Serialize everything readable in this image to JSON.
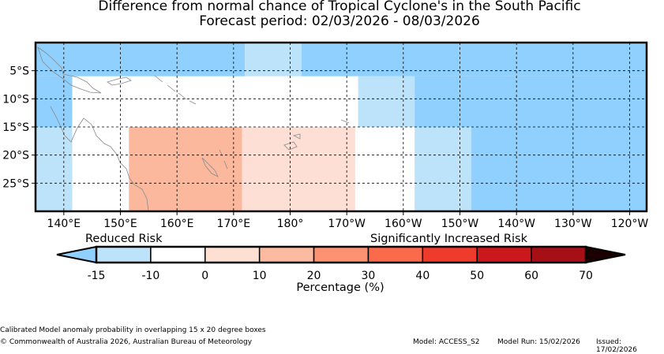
{
  "title": {
    "line1": "Difference from normal chance of Tropical Cyclone's in the South Pacific",
    "line2": "Forecast period: 02/03/2026 - 08/03/2026"
  },
  "map": {
    "lon_range": [
      135,
      243
    ],
    "lat_range": [
      -30,
      0
    ],
    "x_ticks": [
      {
        "lon": 140,
        "label": "140°E"
      },
      {
        "lon": 150,
        "label": "150°E"
      },
      {
        "lon": 160,
        "label": "160°E"
      },
      {
        "lon": 170,
        "label": "170°E"
      },
      {
        "lon": 180,
        "label": "180°"
      },
      {
        "lon": 190,
        "label": "170°W"
      },
      {
        "lon": 200,
        "label": "160°W"
      },
      {
        "lon": 210,
        "label": "150°W"
      },
      {
        "lon": 220,
        "label": "140°W"
      },
      {
        "lon": 230,
        "label": "130°W"
      },
      {
        "lon": 240,
        "label": "120°W"
      }
    ],
    "y_ticks": [
      {
        "lat": -5,
        "label": "5°S"
      },
      {
        "lat": -10,
        "label": "10°S"
      },
      {
        "lat": -15,
        "label": "15°S"
      },
      {
        "lat": -20,
        "label": "20°S"
      },
      {
        "lat": -25,
        "label": "25°S"
      }
    ],
    "grid": true,
    "cells": [
      {
        "lon": [
          135,
          172
        ],
        "lat": [
          -6,
          0
        ],
        "color": "#8fd0ff"
      },
      {
        "lon": [
          172,
          182
        ],
        "lat": [
          -6,
          0
        ],
        "color": "#bde3fb"
      },
      {
        "lon": [
          182,
          243
        ],
        "lat": [
          -6,
          0
        ],
        "color": "#8fd0ff"
      },
      {
        "lon": [
          135,
          141.5
        ],
        "lat": [
          -15,
          -6
        ],
        "color": "#8fd0ff"
      },
      {
        "lon": [
          141.5,
          192
        ],
        "lat": [
          -15,
          -6
        ],
        "color": "#ffffff"
      },
      {
        "lon": [
          192,
          202
        ],
        "lat": [
          -15,
          -6
        ],
        "color": "#bde3fb"
      },
      {
        "lon": [
          202,
          243
        ],
        "lat": [
          -15,
          -6
        ],
        "color": "#8fd0ff"
      },
      {
        "lon": [
          135,
          141.5
        ],
        "lat": [
          -30,
          -15
        ],
        "color": "#bde3fb"
      },
      {
        "lon": [
          141.5,
          151.5
        ],
        "lat": [
          -30,
          -15
        ],
        "color": "#ffffff"
      },
      {
        "lon": [
          151.5,
          171.5
        ],
        "lat": [
          -30,
          -15
        ],
        "color": "#fbb89c"
      },
      {
        "lon": [
          171.5,
          191.5
        ],
        "lat": [
          -30,
          -15
        ],
        "color": "#fedfd5"
      },
      {
        "lon": [
          191.5,
          202
        ],
        "lat": [
          -30,
          -15
        ],
        "color": "#ffffff"
      },
      {
        "lon": [
          202,
          212
        ],
        "lat": [
          -30,
          -15
        ],
        "color": "#bde3fb"
      },
      {
        "lon": [
          212,
          243
        ],
        "lat": [
          -30,
          -15
        ],
        "color": "#8fd0ff"
      }
    ]
  },
  "legend": {
    "reduced_label": "Reduced Risk",
    "increased_label": "Significantly Increased Risk",
    "under_color": "#8fd0ff",
    "over_color": "#1a0000",
    "bins": [
      {
        "from": -15,
        "to": -10,
        "color": "#bde3fb"
      },
      {
        "from": -10,
        "to": 0,
        "color": "#ffffff"
      },
      {
        "from": 0,
        "to": 10,
        "color": "#fee0d2"
      },
      {
        "from": 10,
        "to": 20,
        "color": "#fcbba1"
      },
      {
        "from": 20,
        "to": 30,
        "color": "#fc9272"
      },
      {
        "from": 30,
        "to": 40,
        "color": "#fb6a4a"
      },
      {
        "from": 40,
        "to": 50,
        "color": "#ef3b2c"
      },
      {
        "from": 50,
        "to": 60,
        "color": "#cb181d"
      },
      {
        "from": 60,
        "to": 70,
        "color": "#a50f15"
      }
    ],
    "ticks": [
      "-15",
      "-10",
      "0",
      "10",
      "20",
      "30",
      "40",
      "50",
      "60",
      "70"
    ],
    "xlabel": "Percentage (%)"
  },
  "footer": {
    "note": "Calibrated Model anomaly probability in overlapping 15 x 20 degree boxes",
    "copyright": "© Commonwealth of Australia 2026, Australian Bureau of Meteorology",
    "model": "Model: ACCESS_S2",
    "model_run": "Model Run: 15/02/2026",
    "issued": "Issued: 17/02/2026"
  }
}
